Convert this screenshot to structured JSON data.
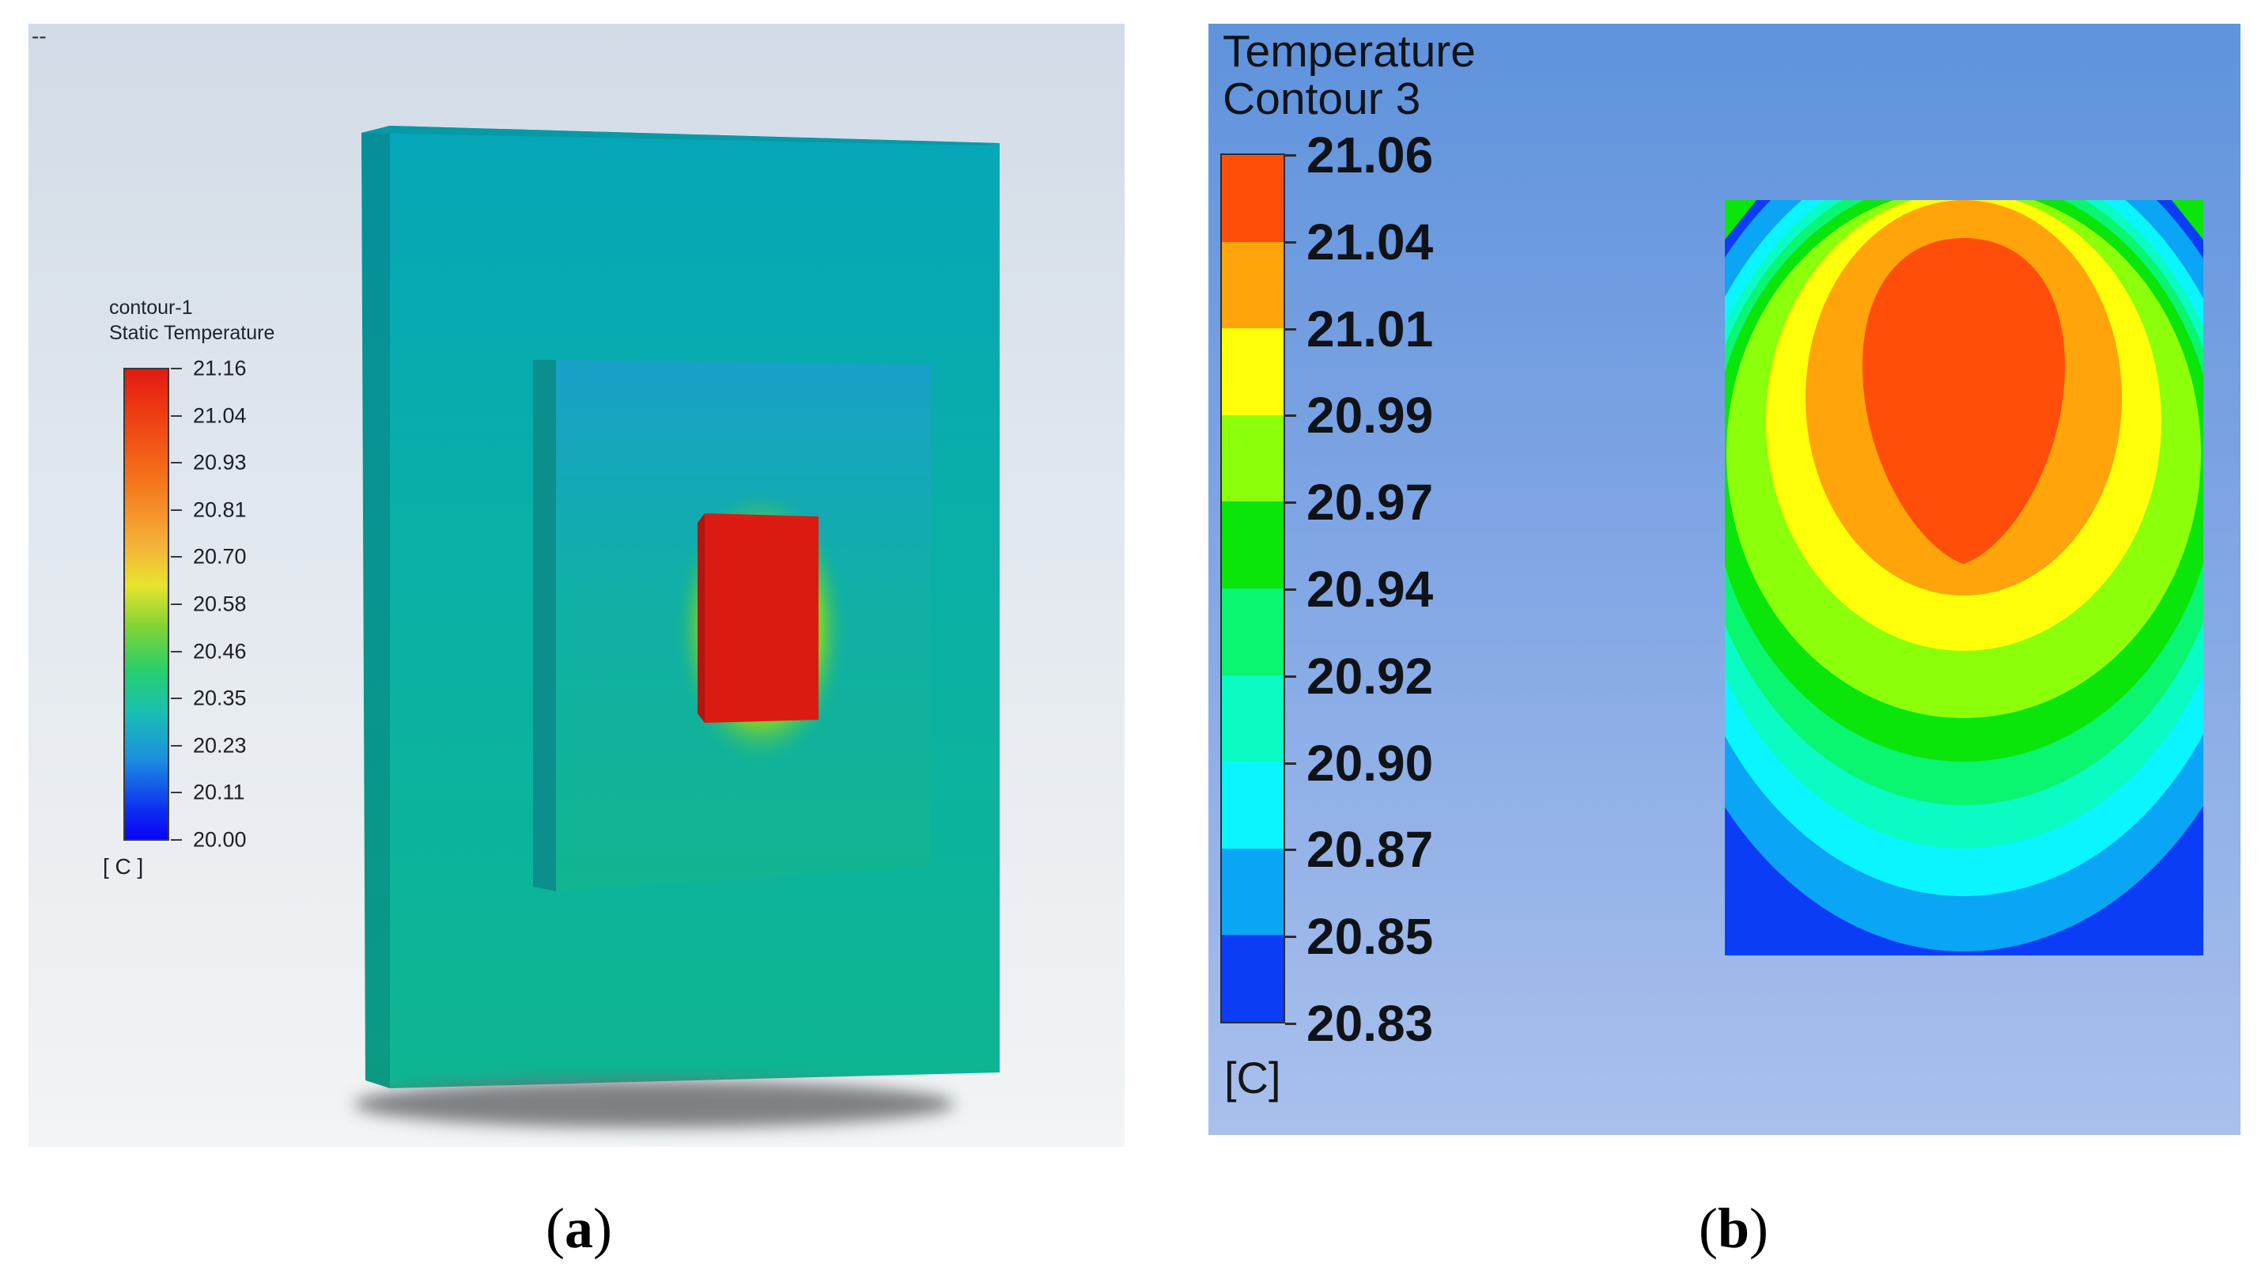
{
  "panel_a": {
    "legend_title": "contour-1",
    "legend_subtitle": "Static Temperature",
    "unit": "[ C ]",
    "ticks": [
      "21.16",
      "21.04",
      "20.93",
      "20.81",
      "20.70",
      "20.58",
      "20.46",
      "20.35",
      "20.23",
      "20.11",
      "20.00"
    ],
    "colors": {
      "slab": "#06a8a6",
      "heater": "#db1b12"
    }
  },
  "panel_b": {
    "legend_title": "Temperature",
    "legend_subtitle": "Contour 3",
    "unit": "[C]",
    "ticks": [
      "21.06",
      "21.04",
      "21.01",
      "20.99",
      "20.97",
      "20.94",
      "20.92",
      "20.90",
      "20.87",
      "20.85",
      "20.83"
    ],
    "band_colors": [
      "#ff4e0a",
      "#ffa40a",
      "#ffff0a",
      "#8cff0a",
      "#0ae50a",
      "#0af570",
      "#0afbc4",
      "#0af5ff",
      "#0aa5f5",
      "#0a3df5"
    ]
  },
  "captions": {
    "a": "a",
    "b": "b"
  }
}
